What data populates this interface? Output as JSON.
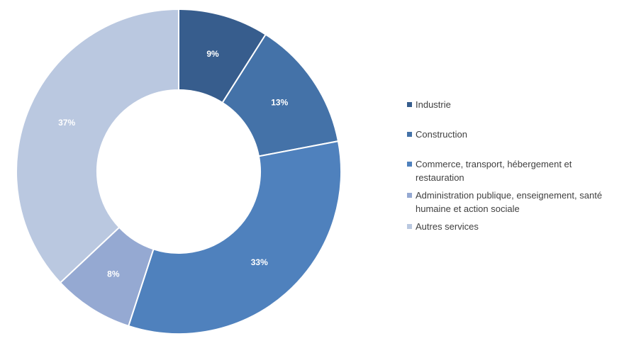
{
  "chart_data": {
    "type": "pie",
    "variant": "donut",
    "title": "",
    "legend_position": "right",
    "labels": [
      "Industrie",
      "Construction",
      "Commerce, transport, hébergement et restauration",
      "Administration publique, enseignement, santé humaine et action sociale",
      "Autres services"
    ],
    "values": [
      9,
      13,
      33,
      8,
      37
    ],
    "data_labels": [
      "9%",
      "13%",
      "33%",
      "8%",
      "37%"
    ],
    "colors": [
      "#375D8D",
      "#4472A8",
      "#4F81BD",
      "#95A9D2",
      "#BAC8E0"
    ]
  }
}
